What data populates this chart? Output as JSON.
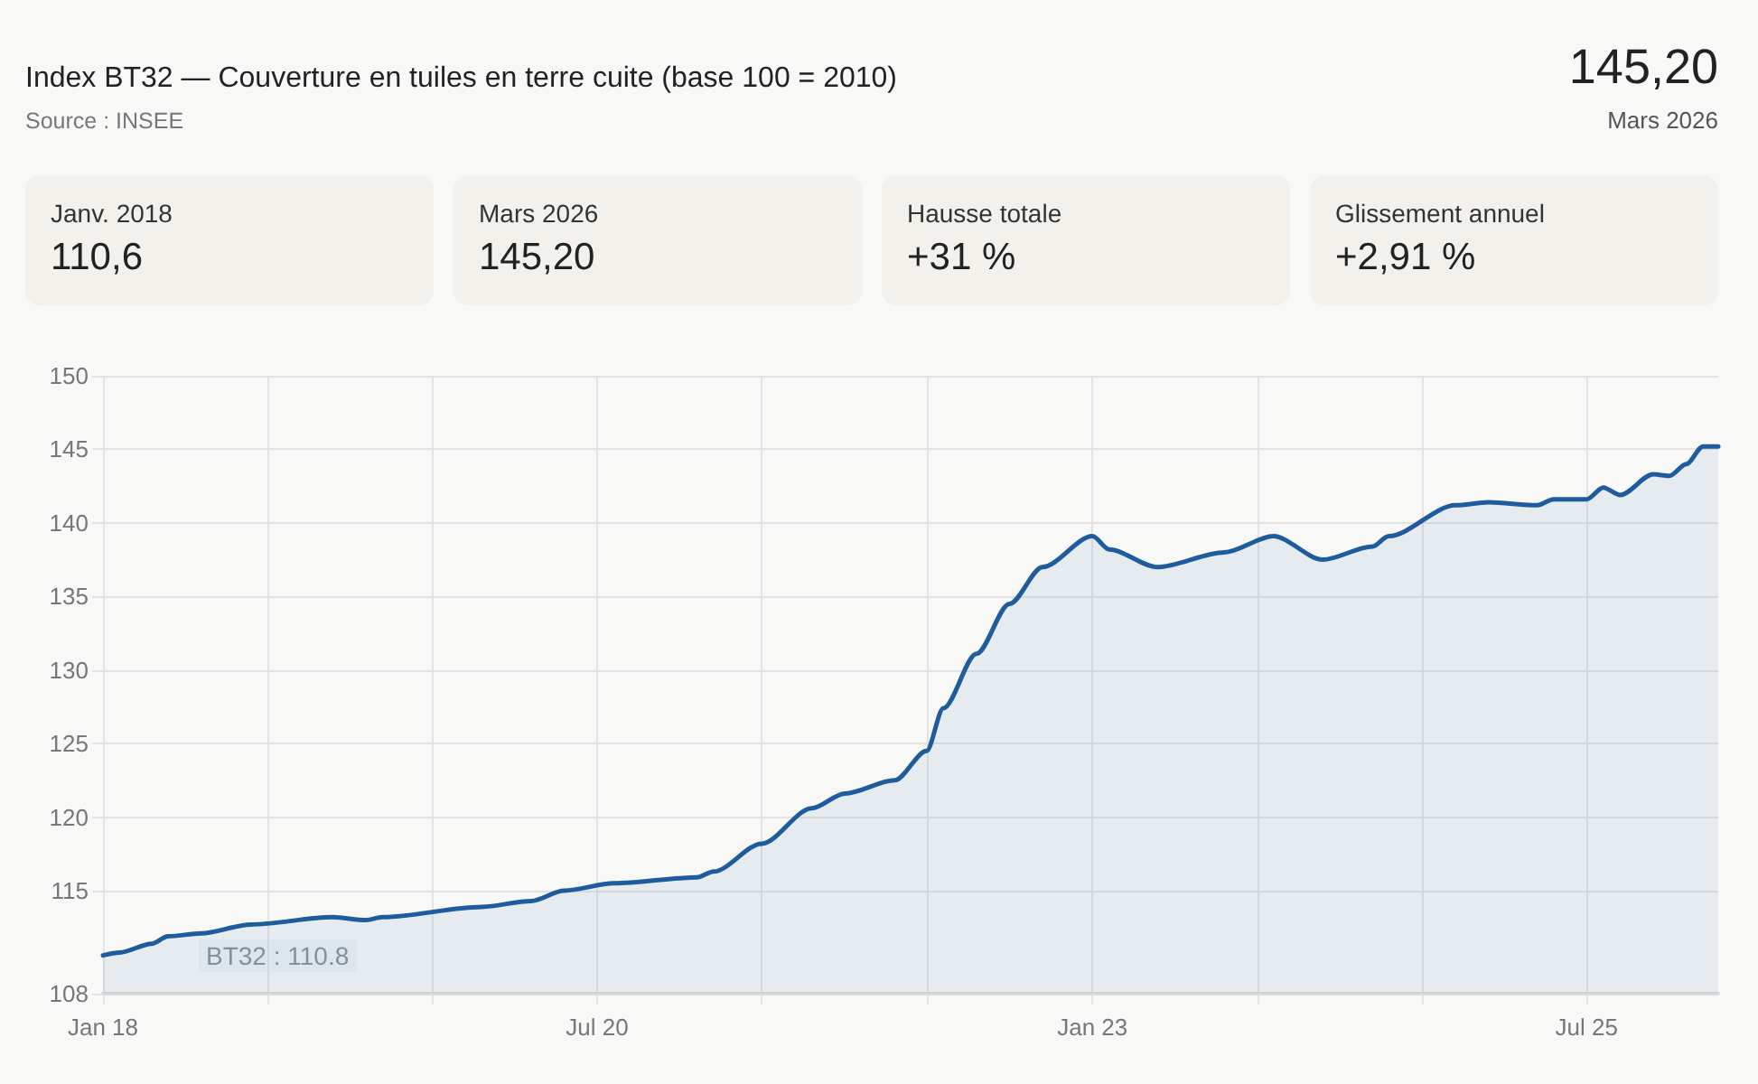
{
  "chart_data": {
    "type": "area",
    "title": "Index BT32 — Couverture en tuiles en terre cuite (base 100 = 2010)",
    "annotations": [
      "Source : INSEE",
      "145,20",
      "Mars 2026",
      "Janv. 2018",
      "110,6",
      "Mars 2026",
      "145,20",
      "Hausse totale",
      "+31 %",
      "Glissement annuel",
      "+2,91 %",
      "BT32 : 110.8"
    ],
    "x": [
      "2018-01",
      "2018-02",
      "2018-04",
      "2018-05",
      "2018-07",
      "2018-10",
      "2019-03",
      "2019-05",
      "2019-06",
      "2019-12",
      "2020-03",
      "2020-05",
      "2020-08",
      "2021-01",
      "2021-02",
      "2021-05",
      "2021-08",
      "2021-10",
      "2022-01",
      "2022-03",
      "2022-04",
      "2022-06",
      "2022-08",
      "2022-10",
      "2023-01",
      "2023-02",
      "2023-05",
      "2023-09",
      "2023-12",
      "2024-03",
      "2024-06",
      "2024-07",
      "2024-11",
      "2025-01",
      "2025-04",
      "2025-05",
      "2025-07",
      "2025-08",
      "2025-09",
      "2025-11",
      "2025-12",
      "2026-01",
      "2026-02",
      "2026-03"
    ],
    "series": [
      {
        "color": "#1f5c9e",
        "values": [
          110.6,
          110.8,
          111.4,
          111.9,
          112.1,
          112.7,
          113.2,
          113.0,
          113.2,
          113.9,
          114.3,
          115.0,
          115.5,
          115.9,
          116.3,
          118.2,
          120.6,
          121.6,
          122.5,
          124.5,
          127.4,
          131.1,
          134.5,
          137.0,
          139.1,
          138.2,
          137.0,
          138.0,
          139.1,
          137.5,
          138.4,
          139.1,
          141.2,
          141.4,
          141.2,
          141.6,
          141.6,
          142.4,
          141.9,
          143.3,
          143.2,
          144.0,
          145.2,
          145.2
        ]
      }
    ],
    "xlim": [
      "2018-01",
      "2026-03"
    ],
    "xticks": [
      {
        "value": "2018-01",
        "label": "Jan 18"
      },
      {
        "value": "2018-11",
        "label": null
      },
      {
        "value": "2019-09",
        "label": null
      },
      {
        "value": "2020-07",
        "label": "Jul 20"
      },
      {
        "value": "2021-05",
        "label": null
      },
      {
        "value": "2022-03",
        "label": null
      },
      {
        "value": "2023-01",
        "label": "Jan 23"
      },
      {
        "value": "2023-11",
        "label": null
      },
      {
        "value": "2024-09",
        "label": null
      },
      {
        "value": "2025-07",
        "label": "Jul 25"
      }
    ],
    "ylim": [
      108,
      150
    ],
    "yticks": [
      108,
      115,
      120,
      125,
      130,
      135,
      140,
      145,
      150
    ],
    "grid": true,
    "marker": "none",
    "line_style": "solid"
  }
}
